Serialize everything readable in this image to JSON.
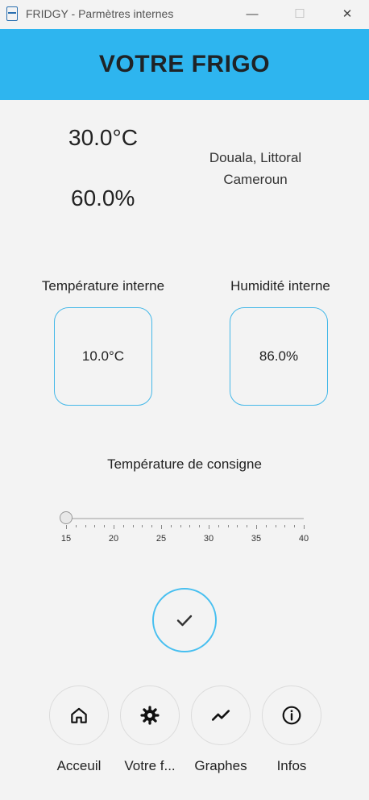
{
  "window": {
    "title": "FRIDGY - Parmètres internes",
    "minimize": "—",
    "maximize": "☐",
    "close": "✕"
  },
  "header": {
    "title": "VOTRE FRIGO"
  },
  "outdoor": {
    "temperature": "30.0°C",
    "humidity": "60.0%",
    "location_line1": "Douala, Littoral",
    "location_line2": "Cameroun"
  },
  "internal": {
    "temperature_label": "Température interne",
    "temperature_value": "10.0°C",
    "humidity_label": "Humidité interne",
    "humidity_value": "86.0%"
  },
  "setpoint": {
    "label": "Température de consigne",
    "min": 15,
    "max": 40,
    "value": 15,
    "tick_labels": [
      "15",
      "20",
      "25",
      "30",
      "35",
      "40"
    ]
  },
  "confirm": {
    "icon": "check-icon"
  },
  "nav": [
    {
      "label": "Acceuil",
      "icon": "home-icon"
    },
    {
      "label": "Votre f...",
      "icon": "gear-icon"
    },
    {
      "label": "Graphes",
      "icon": "trending-icon"
    },
    {
      "label": "Infos",
      "icon": "info-icon"
    }
  ],
  "colors": {
    "accent": "#2eb5ef",
    "border": "#45b8e8"
  }
}
